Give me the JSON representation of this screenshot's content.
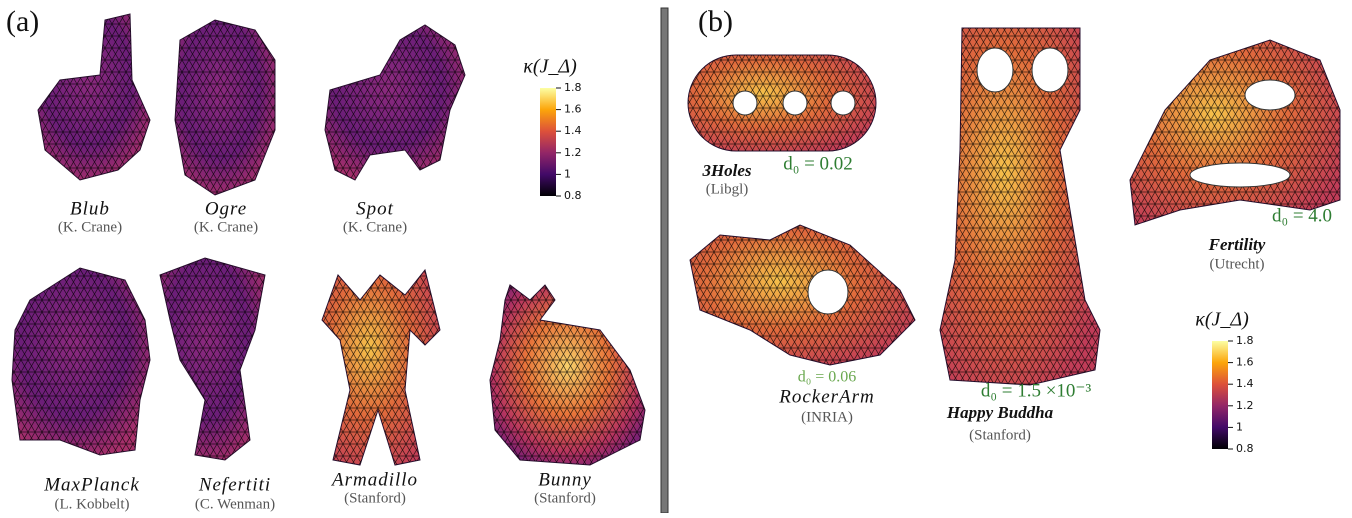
{
  "panels": [
    {
      "label": "(a)",
      "models": [
        {
          "name": "Blub",
          "source": "(K. Crane)"
        },
        {
          "name": "Ogre",
          "source": "(K. Crane)"
        },
        {
          "name": "Spot",
          "source": "(K. Crane)"
        },
        {
          "name": "MaxPlanck",
          "source": "(L. Kobbelt)"
        },
        {
          "name": "Nefertiti",
          "source": "(C. Wenman)"
        },
        {
          "name": "Armadillo",
          "source": "(Stanford)"
        },
        {
          "name": "Bunny",
          "source": "(Stanford)"
        }
      ],
      "colorbar": {
        "label": "κ(J_Δ)",
        "ticks": [
          0.8,
          1,
          1.2,
          1.4,
          1.6,
          1.8
        ]
      }
    },
    {
      "label": "(b)",
      "models": [
        {
          "name": "3Holes",
          "source": "(Libgl)",
          "d0": "d₀ = 0.02"
        },
        {
          "name": "RockerArm",
          "source": "(INRIA)",
          "d0": "d₀ = 0.06"
        },
        {
          "name": "Happy Buddha",
          "source": "(Stanford)",
          "d0": "d₀ = 1.5 ×10⁻³"
        },
        {
          "name": "Fertility",
          "source": "(Utrecht)",
          "d0": "d₀ = 4.0"
        }
      ],
      "colorbar": {
        "label": "κ(J_Δ)",
        "ticks": [
          0.8,
          1,
          1.2,
          1.4,
          1.6,
          1.8
        ]
      }
    }
  ]
}
